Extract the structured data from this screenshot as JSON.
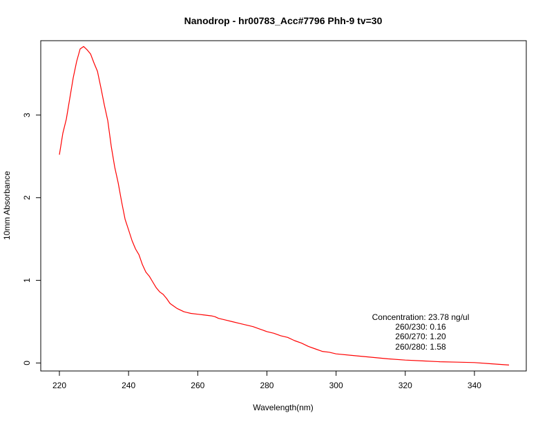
{
  "chart_data": {
    "type": "line",
    "title": "Nanodrop - hr00783_Acc#7796 Phh-9 tv=30",
    "xlabel": "Wavelength(nm)",
    "ylabel": "10mm Absorbance",
    "xlim": [
      220,
      350
    ],
    "ylim": [
      -0.03,
      3.85
    ],
    "x_ticks": [
      220,
      240,
      260,
      280,
      300,
      320,
      340
    ],
    "y_ticks": [
      0,
      1,
      2,
      3
    ],
    "grid": false,
    "series": [
      {
        "color": "#ff0000",
        "x": [
          220,
          221,
          222,
          223,
          224,
          225,
          226,
          227,
          228,
          229,
          230,
          231,
          232,
          233,
          234,
          235,
          236,
          237,
          238,
          239,
          240,
          241,
          242,
          243,
          244,
          245,
          246,
          247,
          248,
          249,
          250,
          251,
          252,
          253,
          254,
          255,
          256,
          257,
          258,
          260,
          262,
          264,
          265,
          266,
          268,
          270,
          272,
          274,
          276,
          278,
          280,
          282,
          284,
          286,
          288,
          290,
          292,
          294,
          296,
          298,
          300,
          305,
          310,
          315,
          320,
          325,
          330,
          335,
          340,
          345,
          350
        ],
        "y": [
          2.52,
          2.78,
          2.95,
          3.2,
          3.45,
          3.65,
          3.8,
          3.83,
          3.79,
          3.74,
          3.63,
          3.53,
          3.33,
          3.12,
          2.93,
          2.62,
          2.37,
          2.18,
          1.95,
          1.74,
          1.61,
          1.48,
          1.38,
          1.31,
          1.19,
          1.1,
          1.05,
          0.98,
          0.91,
          0.86,
          0.83,
          0.78,
          0.72,
          0.69,
          0.66,
          0.64,
          0.62,
          0.61,
          0.6,
          0.59,
          0.58,
          0.57,
          0.56,
          0.54,
          0.52,
          0.5,
          0.48,
          0.46,
          0.44,
          0.41,
          0.38,
          0.36,
          0.33,
          0.31,
          0.27,
          0.24,
          0.2,
          0.17,
          0.14,
          0.13,
          0.11,
          0.09,
          0.07,
          0.05,
          0.035,
          0.025,
          0.015,
          0.01,
          0.005,
          -0.01,
          -0.025
        ]
      }
    ],
    "annotations": [
      "Concentration: 23.78 ng/ul",
      "260/230: 0.16",
      "260/270: 1.20",
      "260/280: 1.58"
    ]
  }
}
